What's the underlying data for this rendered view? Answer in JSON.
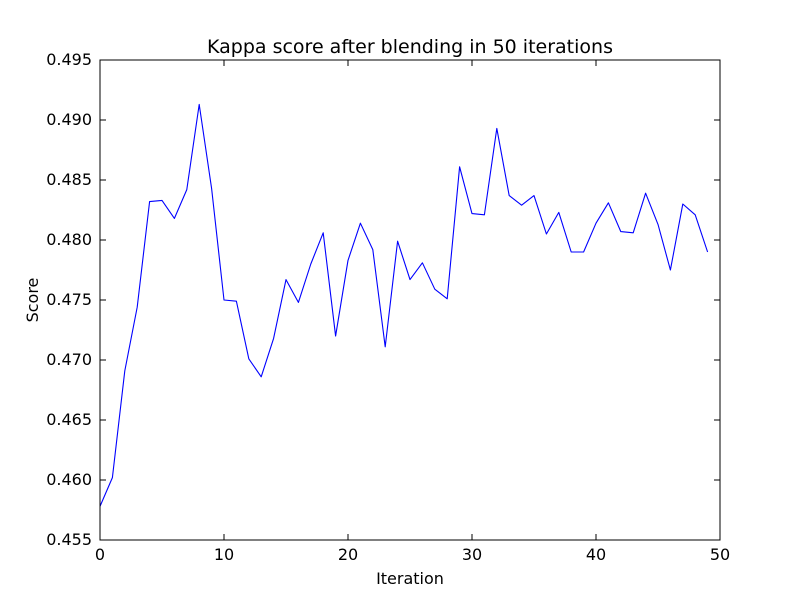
{
  "chart_data": {
    "type": "line",
    "title": "Kappa score after blending in 50 iterations",
    "xlabel": "Iteration",
    "ylabel": "Score",
    "xlim": [
      0,
      50
    ],
    "ylim": [
      0.455,
      0.495
    ],
    "x_ticks": [
      0,
      10,
      20,
      30,
      40,
      50
    ],
    "x_tick_labels": [
      "0",
      "10",
      "20",
      "30",
      "40",
      "50"
    ],
    "y_ticks": [
      0.455,
      0.46,
      0.465,
      0.47,
      0.475,
      0.48,
      0.485,
      0.49,
      0.495
    ],
    "y_tick_labels": [
      "0.455",
      "0.460",
      "0.465",
      "0.470",
      "0.475",
      "0.480",
      "0.485",
      "0.490",
      "0.495"
    ],
    "grid": false,
    "legend": false,
    "series": [
      {
        "color": "#0000ff",
        "x": [
          0,
          1,
          2,
          3,
          4,
          5,
          6,
          7,
          8,
          9,
          10,
          11,
          12,
          13,
          14,
          15,
          16,
          17,
          18,
          19,
          20,
          21,
          22,
          23,
          24,
          25,
          26,
          27,
          28,
          29,
          30,
          31,
          32,
          33,
          34,
          35,
          36,
          37,
          38,
          39,
          40,
          41,
          42,
          43,
          44,
          45,
          46,
          47,
          48,
          49
        ],
        "values": [
          0.4578,
          0.4602,
          0.4691,
          0.4744,
          0.4832,
          0.4833,
          0.4818,
          0.4842,
          0.4913,
          0.4843,
          0.475,
          0.4749,
          0.4701,
          0.4686,
          0.4718,
          0.4767,
          0.4748,
          0.478,
          0.4806,
          0.472,
          0.4783,
          0.4814,
          0.4792,
          0.4711,
          0.4799,
          0.4767,
          0.4781,
          0.4759,
          0.4751,
          0.4861,
          0.4822,
          0.4821,
          0.4893,
          0.4837,
          0.4829,
          0.4837,
          0.4805,
          0.4823,
          0.479,
          0.479,
          0.4814,
          0.4831,
          0.4807,
          0.4806,
          0.4839,
          0.4813,
          0.4775,
          0.483,
          0.4821,
          0.479
        ]
      }
    ]
  }
}
